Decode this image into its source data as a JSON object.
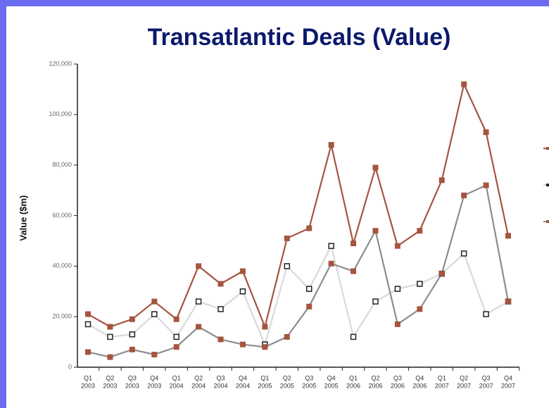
{
  "chart_data": {
    "type": "line",
    "title": "Transatlantic Deals (Value)",
    "y_label": "Value ($m)",
    "categories": [
      [
        "Q1",
        "2003"
      ],
      [
        "Q2",
        "2003"
      ],
      [
        "Q3",
        "2003"
      ],
      [
        "Q4",
        "2003"
      ],
      [
        "Q1",
        "2004"
      ],
      [
        "Q2",
        "2004"
      ],
      [
        "Q3",
        "2004"
      ],
      [
        "Q4",
        "2004"
      ],
      [
        "Q1",
        "2005"
      ],
      [
        "Q2",
        "2005"
      ],
      [
        "Q3",
        "2005"
      ],
      [
        "Q4",
        "2005"
      ],
      [
        "Q1",
        "2006"
      ],
      [
        "Q2",
        "2006"
      ],
      [
        "Q3",
        "2006"
      ],
      [
        "Q4",
        "2006"
      ],
      [
        "Q1",
        "2007"
      ],
      [
        "Q2",
        "2007"
      ],
      [
        "Q3",
        "2007"
      ],
      [
        "Q4",
        "2007"
      ]
    ],
    "series": [
      {
        "color": "#a5553f",
        "marker": "filled",
        "marker_color": "#a5553f",
        "values": [
          21000,
          16000,
          19000,
          26000,
          19000,
          40000,
          33000,
          38000,
          16000,
          51000,
          55000,
          88000,
          49000,
          79000,
          48000,
          54000,
          74000,
          112000,
          93000,
          52000
        ]
      },
      {
        "color": "#d9d9d9",
        "marker": "open",
        "marker_color": "#222222",
        "values": [
          17000,
          12000,
          13000,
          21000,
          12000,
          26000,
          23000,
          30000,
          9000,
          40000,
          31000,
          48000,
          12000,
          26000,
          31000,
          33000,
          37000,
          45000,
          21000,
          26000
        ]
      },
      {
        "color": "#8c8c8c",
        "marker": "filled",
        "marker_color": "#a5553f",
        "values": [
          6000,
          4000,
          7000,
          5000,
          8000,
          16000,
          11000,
          9000,
          8000,
          12000,
          24000,
          41000,
          38000,
          54000,
          17000,
          23000,
          37000,
          68000,
          72000,
          26000
        ]
      }
    ],
    "ylim": [
      0,
      120000
    ],
    "yticks": [
      0,
      {
        "value": 20000,
        "label": "20,000"
      },
      {
        "value": 40000,
        "label": "40,000"
      },
      {
        "value": 60000,
        "label": "60,000"
      },
      {
        "value": 80000,
        "label": "80,000"
      },
      {
        "value": 100000,
        "label": "100,000"
      },
      {
        "value": 120000,
        "label": "120,000"
      }
    ],
    "grid": false
  }
}
